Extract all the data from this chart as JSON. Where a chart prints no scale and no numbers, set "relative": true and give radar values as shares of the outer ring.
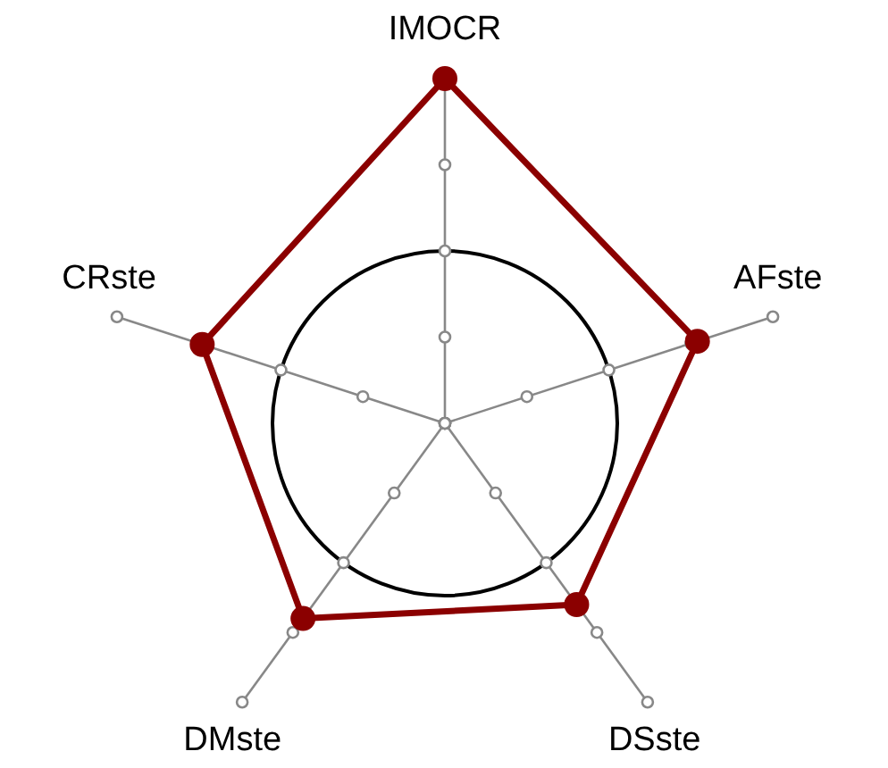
{
  "chart_data": {
    "type": "radar",
    "relative": true,
    "categories": [
      "IMOCR",
      "AFste",
      "DSste",
      "DMste",
      "CRste"
    ],
    "series": [
      {
        "color": "#8b0000",
        "values": [
          1,
          0.77,
          0.65,
          0.7,
          0.74
        ]
      }
    ],
    "grid": true,
    "marker": "circle",
    "legend": false
  }
}
